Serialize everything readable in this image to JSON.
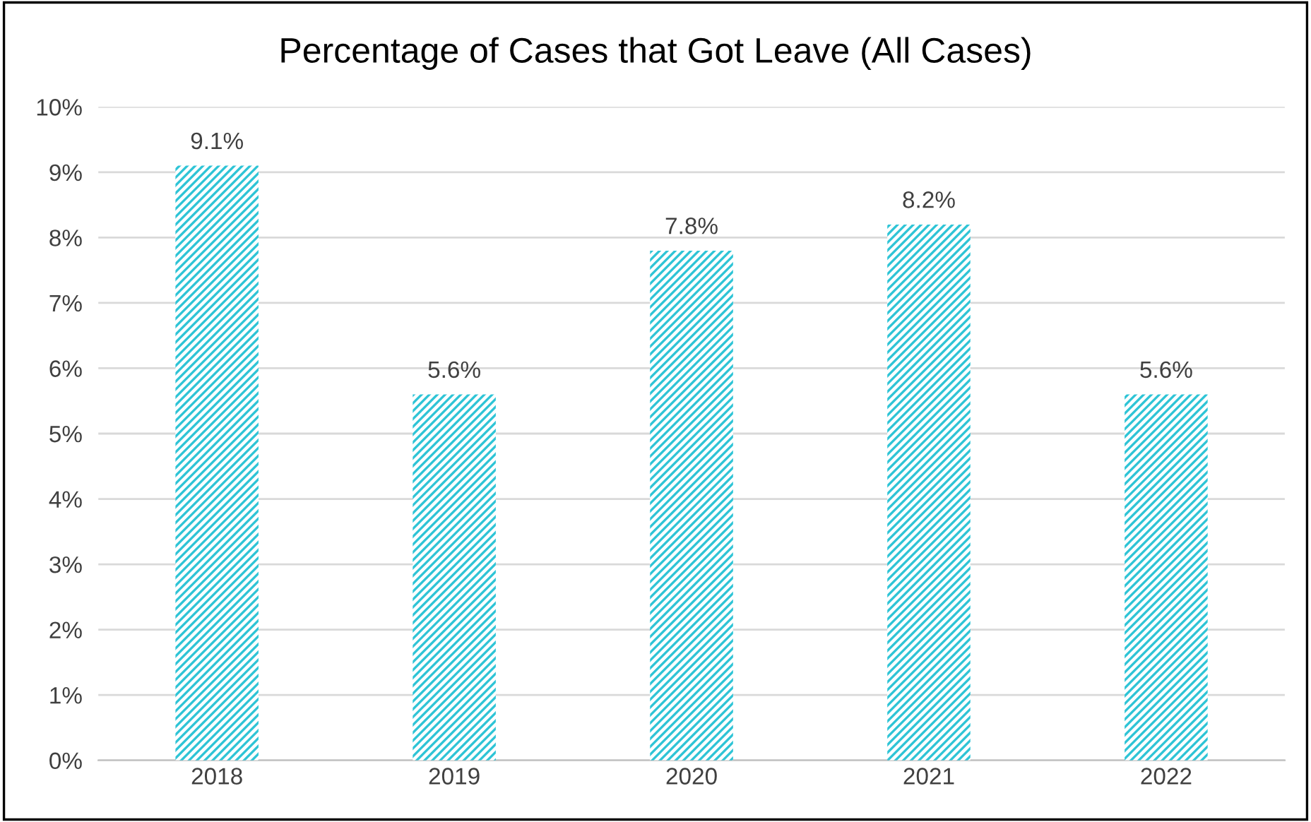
{
  "chart_data": {
    "type": "bar",
    "title": "Percentage of Cases that Got Leave (All Cases)",
    "categories": [
      "2018",
      "2019",
      "2020",
      "2021",
      "2022"
    ],
    "values": [
      9.1,
      5.6,
      7.8,
      8.2,
      5.6
    ],
    "value_labels": [
      "9.1%",
      "5.6%",
      "7.8%",
      "8.2%",
      "5.6%"
    ],
    "color": "#2ec4d6",
    "ylim": [
      0,
      10
    ],
    "yticks": [
      {
        "value": 0,
        "label": "0%"
      },
      {
        "value": 1,
        "label": "1%"
      },
      {
        "value": 2,
        "label": "2%"
      },
      {
        "value": 3,
        "label": "3%"
      },
      {
        "value": 4,
        "label": "4%"
      },
      {
        "value": 5,
        "label": "5%"
      },
      {
        "value": 6,
        "label": "6%"
      },
      {
        "value": 7,
        "label": "7%"
      },
      {
        "value": 8,
        "label": "8%"
      },
      {
        "value": 9,
        "label": "9%"
      },
      {
        "value": 10,
        "label": "10%"
      }
    ],
    "grid": "y"
  }
}
